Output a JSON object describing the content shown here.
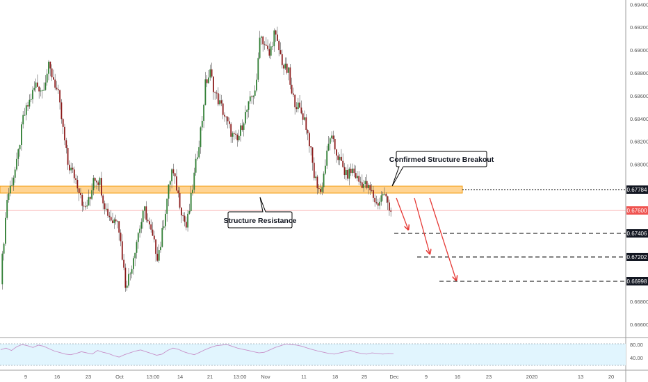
{
  "chart_data": {
    "type": "candlestick",
    "y_axis": {
      "range": [
        0.6652,
        0.6942
      ],
      "ticks": [
        "0.69400",
        "0.69200",
        "0.69000",
        "0.68800",
        "0.68600",
        "0.68400",
        "0.68200",
        "0.68000",
        "0.67800",
        "0.67600",
        "0.67400",
        "0.67200",
        "0.67000",
        "0.66800",
        "0.66600"
      ],
      "gridlines": false
    },
    "x_axis": {
      "tick_labels": [
        "9",
        "16",
        "23",
        "Oct",
        "13:00",
        "14",
        "21",
        "13:00",
        "Nov",
        "11",
        "18",
        "25",
        "Dec",
        "9",
        "16",
        "23",
        "2020",
        "13",
        "20"
      ]
    },
    "price_path": [
      [
        0,
        0.67
      ],
      [
        4,
        0.677
      ],
      [
        10,
        0.68
      ],
      [
        14,
        0.684
      ],
      [
        18,
        0.6855
      ],
      [
        22,
        0.687
      ],
      [
        26,
        0.6865
      ],
      [
        30,
        0.6885
      ],
      [
        33,
        0.6875
      ],
      [
        36,
        0.686
      ],
      [
        38,
        0.684
      ],
      [
        42,
        0.68
      ],
      [
        46,
        0.679
      ],
      [
        50,
        0.6775
      ],
      [
        52,
        0.676
      ],
      [
        56,
        0.677
      ],
      [
        58,
        0.679
      ],
      [
        62,
        0.6785
      ],
      [
        64,
        0.677
      ],
      [
        66,
        0.676
      ],
      [
        70,
        0.675
      ],
      [
        73,
        0.6755
      ],
      [
        76,
        0.672
      ],
      [
        78,
        0.6695
      ],
      [
        81,
        0.6705
      ],
      [
        83,
        0.672
      ],
      [
        86,
        0.674
      ],
      [
        90,
        0.676
      ],
      [
        92,
        0.675
      ],
      [
        95,
        0.6735
      ],
      [
        98,
        0.672
      ],
      [
        100,
        0.673
      ],
      [
        104,
        0.677
      ],
      [
        107,
        0.6795
      ],
      [
        110,
        0.678
      ],
      [
        113,
        0.676
      ],
      [
        116,
        0.6745
      ],
      [
        118,
        0.676
      ],
      [
        122,
        0.68
      ],
      [
        126,
        0.684
      ],
      [
        128,
        0.687
      ],
      [
        131,
        0.688
      ],
      [
        134,
        0.6862
      ],
      [
        138,
        0.685
      ],
      [
        142,
        0.6835
      ],
      [
        145,
        0.6825
      ],
      [
        148,
        0.682
      ],
      [
        152,
        0.684
      ],
      [
        156,
        0.6855
      ],
      [
        160,
        0.687
      ],
      [
        162,
        0.6915
      ],
      [
        165,
        0.6905
      ],
      [
        168,
        0.6895
      ],
      [
        171,
        0.6915
      ],
      [
        174,
        0.69
      ],
      [
        177,
        0.6885
      ],
      [
        180,
        0.688
      ],
      [
        182,
        0.686
      ],
      [
        186,
        0.685
      ],
      [
        190,
        0.684
      ],
      [
        193,
        0.682
      ],
      [
        196,
        0.679
      ],
      [
        200,
        0.6775
      ],
      [
        203,
        0.68
      ],
      [
        206,
        0.6825
      ],
      [
        210,
        0.681
      ],
      [
        213,
        0.68
      ],
      [
        216,
        0.679
      ],
      [
        220,
        0.6795
      ],
      [
        224,
        0.6785
      ],
      [
        228,
        0.6782
      ],
      [
        232,
        0.6775
      ],
      [
        235,
        0.6765
      ],
      [
        237,
        0.6768
      ],
      [
        239,
        0.6775
      ],
      [
        241,
        0.677
      ],
      [
        244,
        0.676
      ]
    ],
    "annotations": {
      "resistance_zone": {
        "low": 0.67725,
        "high": 0.67845,
        "label": "Structure Resistance"
      },
      "breakout_label": "Confirmed Structure Breakout",
      "current_price_line": 0.676,
      "target_levels": [
        0.67406,
        0.67202,
        0.66998
      ],
      "arrows": 3
    },
    "price_labels": {
      "resistance": "0.67784",
      "current": "0.67600",
      "targets": [
        "0.67406",
        "0.67202",
        "0.66998"
      ]
    },
    "indicator": {
      "type": "RSI",
      "levels": [
        "80.00",
        "40.00"
      ],
      "values": [
        55,
        60,
        52,
        65,
        72,
        68,
        62,
        70,
        66,
        58,
        50,
        45,
        40,
        38,
        42,
        48,
        44,
        40,
        52,
        46,
        42,
        35,
        30,
        38,
        44,
        50,
        54,
        48,
        42,
        36,
        40,
        52,
        60,
        56,
        48,
        42,
        38,
        46,
        55,
        62,
        68,
        70,
        72,
        66,
        60,
        56,
        52,
        48,
        44,
        46,
        54,
        62,
        68,
        74,
        72,
        70,
        66,
        60,
        55,
        50,
        46,
        42,
        40,
        44,
        48,
        52,
        46,
        42,
        40,
        44,
        42,
        40,
        42,
        41
      ]
    },
    "colors": {
      "bull": "#26a69a",
      "bear": "#ef5350",
      "zone_fill": "#ffcc80",
      "zone_border": "#f39c12",
      "current_price": "#ef5350",
      "arrow": "#e53935",
      "rsi_line": "#c890c8",
      "rsi_band": "#e1f5fe",
      "label_bg": "#131722"
    }
  }
}
